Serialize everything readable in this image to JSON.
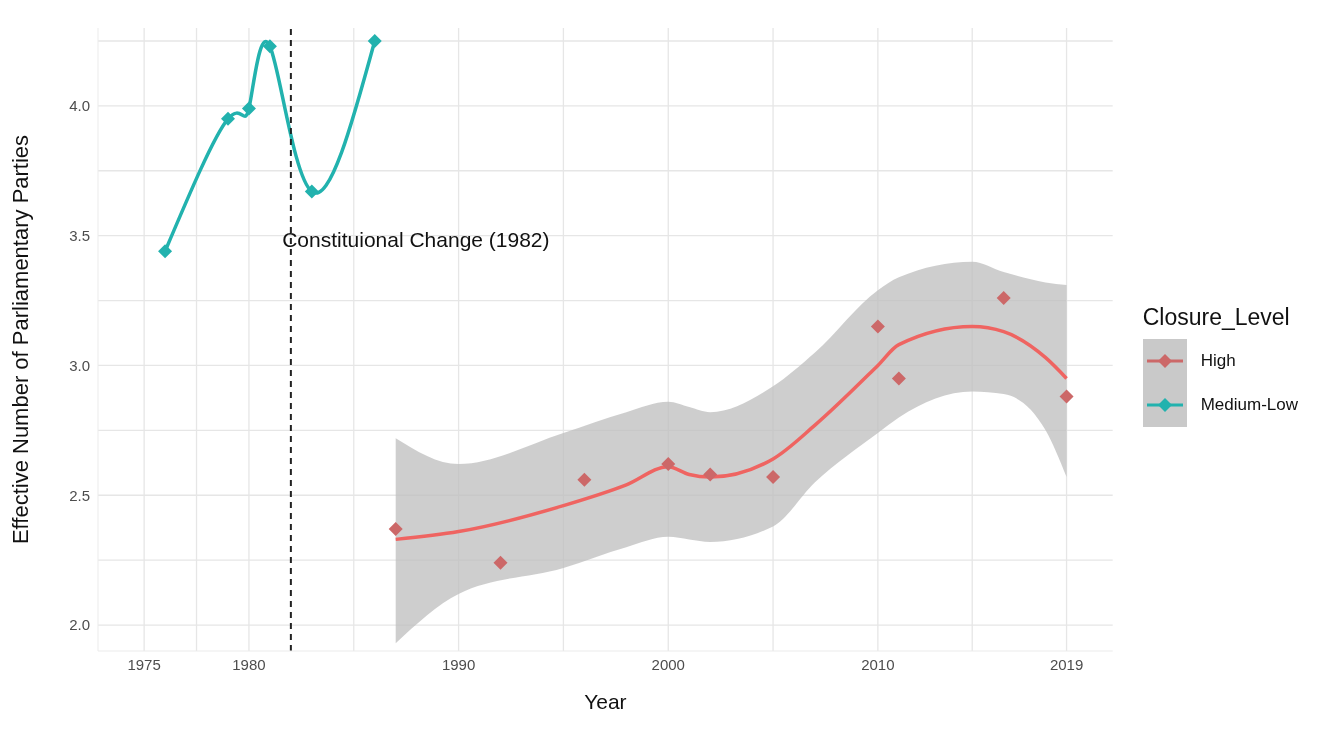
{
  "chart_data": {
    "type": "line",
    "xlabel": "Year",
    "ylabel": "Effective Number of Parliamentary Parties",
    "legend_title": "Closure_Level",
    "legend": "right",
    "grid": true,
    "marker": "diamond",
    "xlim": [
      1972.8,
      2021.2
    ],
    "xticks": [
      1975,
      {
        "value": 1977.5,
        "label": null
      },
      1980,
      {
        "value": 1985,
        "label": null
      },
      1990,
      {
        "value": 1995,
        "label": null
      },
      2000,
      {
        "value": 2005,
        "label": null
      },
      2010,
      {
        "value": 2014.5,
        "label": null
      },
      2019
    ],
    "ylim": [
      1.9,
      4.3
    ],
    "yticks": [
      {
        "value": 2.0,
        "label": "2.0"
      },
      {
        "value": 2.25,
        "label": null
      },
      {
        "value": 2.5,
        "label": "2.5"
      },
      {
        "value": 2.75,
        "label": null
      },
      {
        "value": 3.0,
        "label": "3.0"
      },
      {
        "value": 3.25,
        "label": null
      },
      {
        "value": 3.5,
        "label": "3.5"
      },
      {
        "value": 3.75,
        "label": null
      },
      {
        "value": 4.0,
        "label": "4.0"
      },
      {
        "value": 4.25,
        "label": null
      }
    ],
    "ref_lines": [
      {
        "axis": "x",
        "value": 1982,
        "color": "#222222",
        "line_style": "dashed",
        "label": "Constituional Change (1982)"
      }
    ],
    "series": [
      {
        "marker": "none",
        "color": "#ef6461",
        "x": [
          1987,
          1990,
          1995,
          1998,
          2000,
          2001,
          2002,
          2005,
          2007,
          2010,
          2011,
          2014.5,
          2016,
          2018,
          2019
        ],
        "values": [
          2.33,
          2.36,
          2.46,
          2.54,
          2.61,
          2.58,
          2.57,
          2.64,
          2.77,
          3.0,
          3.08,
          3.15,
          3.13,
          3.03,
          2.95
        ],
        "lower": [
          1.93,
          2.12,
          2.22,
          2.3,
          2.34,
          2.33,
          2.32,
          2.38,
          2.55,
          2.74,
          2.8,
          2.9,
          2.89,
          2.75,
          2.57
        ],
        "upper": [
          2.72,
          2.62,
          2.74,
          2.82,
          2.86,
          2.84,
          2.82,
          2.92,
          3.05,
          3.29,
          3.34,
          3.4,
          3.36,
          3.32,
          3.31
        ]
      },
      {
        "type": "scatter",
        "name": "High",
        "color": "#cc6868",
        "x": [
          1987,
          1992,
          1996,
          2000,
          2002,
          2005,
          2010,
          2011,
          2016,
          2019
        ],
        "values": [
          2.37,
          2.24,
          2.56,
          2.62,
          2.58,
          2.57,
          3.15,
          2.95,
          3.26,
          2.88
        ]
      },
      {
        "name": "Medium-Low",
        "color": "#22b2ae",
        "x": [
          1976,
          1979,
          1980,
          1981,
          1983,
          1986
        ],
        "values": [
          3.44,
          3.95,
          3.99,
          4.23,
          3.67,
          4.25
        ]
      }
    ]
  }
}
